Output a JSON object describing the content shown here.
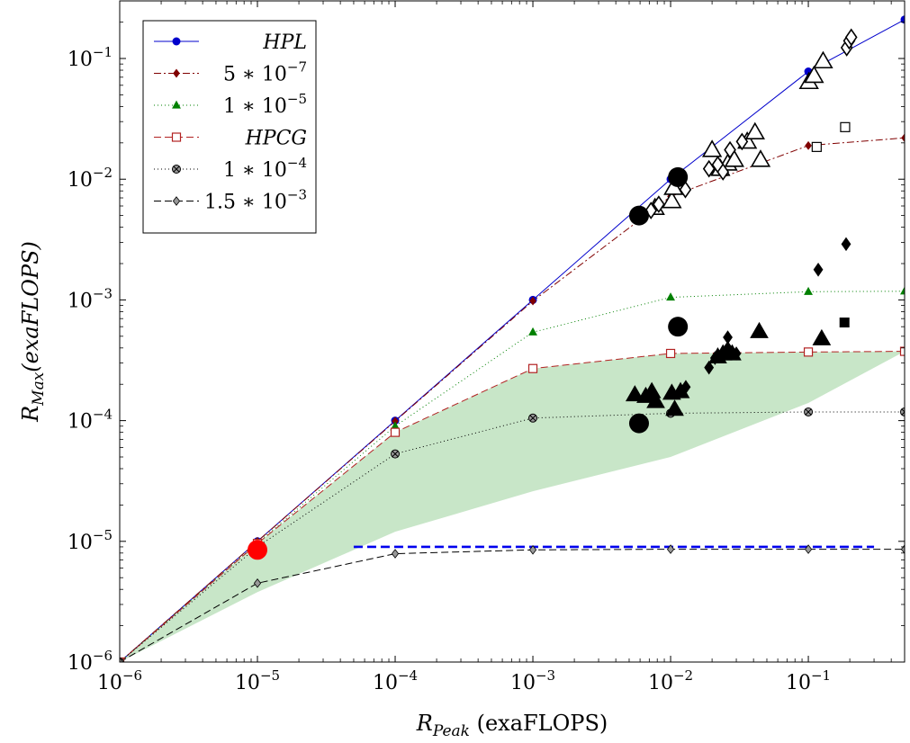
{
  "chart_data": {
    "type": "scatter",
    "xscale": "log",
    "yscale": "log",
    "xlim": [
      1e-06,
      0.5
    ],
    "ylim": [
      1e-06,
      0.3
    ],
    "xlabel": {
      "main": "R",
      "sub": "Peak",
      "rest": " (exaFLOPS)"
    },
    "ylabel": {
      "main": "R",
      "sub": "Max",
      "rest": "(exaFLOPS)"
    },
    "x_ticks": [
      {
        "value": 1e-06,
        "base": "10",
        "exp": "−6"
      },
      {
        "value": 1e-05,
        "base": "10",
        "exp": "−5"
      },
      {
        "value": 0.0001,
        "base": "10",
        "exp": "−4"
      },
      {
        "value": 0.001,
        "base": "10",
        "exp": "−3"
      },
      {
        "value": 0.01,
        "base": "10",
        "exp": "−2"
      },
      {
        "value": 0.1,
        "base": "10",
        "exp": "−1"
      }
    ],
    "y_ticks": [
      {
        "value": 1e-06,
        "base": "10",
        "exp": "−6"
      },
      {
        "value": 1e-05,
        "base": "10",
        "exp": "−5"
      },
      {
        "value": 0.0001,
        "base": "10",
        "exp": "−4"
      },
      {
        "value": 0.001,
        "base": "10",
        "exp": "−3"
      },
      {
        "value": 0.01,
        "base": "10",
        "exp": "−2"
      },
      {
        "value": 0.1,
        "base": "10",
        "exp": "−1"
      }
    ],
    "legend_position": "top-left",
    "series": [
      {
        "name": "HPL",
        "color": "#0000cc",
        "marker": "circle",
        "dash": "",
        "italic": true,
        "x": [
          1e-06,
          1e-05,
          0.0001,
          0.001,
          0.01,
          0.1,
          0.5
        ],
        "y": [
          1e-06,
          1e-05,
          0.0001,
          0.001,
          0.01,
          0.078,
          0.21
        ]
      },
      {
        "name": "5 ∗ 10",
        "name_exp": "−7",
        "color": "#800000",
        "marker": "diamond",
        "dash": "8,3,2,3",
        "italic": false,
        "x": [
          1e-06,
          1e-05,
          0.0001,
          0.001,
          0.01,
          0.1,
          0.5
        ],
        "y": [
          1e-06,
          1e-05,
          9.9e-05,
          0.00098,
          0.0072,
          0.019,
          0.022
        ]
      },
      {
        "name": "1 ∗ 10",
        "name_exp": "−5",
        "color": "#008000",
        "marker": "triangle",
        "dash": "1,3",
        "italic": false,
        "x": [
          1e-06,
          1e-05,
          0.0001,
          0.001,
          0.01,
          0.1,
          0.5
        ],
        "y": [
          1e-06,
          9.7e-06,
          9e-05,
          0.00054,
          0.00105,
          0.00117,
          0.00118
        ]
      },
      {
        "name": "HPCG",
        "color": "#b22222",
        "marker": "square-open",
        "dash": "8,4",
        "italic": true,
        "x": [
          1e-06,
          1e-05,
          0.0001,
          0.001,
          0.01,
          0.1,
          0.5
        ],
        "y": [
          1e-06,
          9.6e-06,
          8e-05,
          0.00027,
          0.00036,
          0.00037,
          0.000375
        ]
      },
      {
        "name": "1 ∗ 10",
        "name_exp": "−4",
        "color": "#000000",
        "marker": "circle-x",
        "dash": "1,3",
        "italic": false,
        "x": [
          1e-06,
          1e-05,
          0.0001,
          0.001,
          0.01,
          0.1,
          0.5
        ],
        "y": [
          1e-06,
          9e-06,
          5.3e-05,
          0.000105,
          0.000115,
          0.000118,
          0.000118
        ]
      },
      {
        "name": "1.5 ∗ 10",
        "name_exp": "−3",
        "color": "#000000",
        "marker": "diamond-gray",
        "dash": "8,4",
        "italic": false,
        "x": [
          1e-06,
          1e-05,
          0.0001,
          0.001,
          0.01,
          0.1,
          0.5
        ],
        "y": [
          1e-06,
          4.5e-06,
          7.9e-06,
          8.5e-06,
          8.6e-06,
          8.6e-06,
          8.6e-06
        ]
      }
    ],
    "shaded_region": {
      "color": "#c8e6c8",
      "upper": [
        [
          1e-06,
          1e-06
        ],
        [
          1e-05,
          9.6e-06
        ],
        [
          0.0001,
          8e-05
        ],
        [
          0.001,
          0.00027
        ],
        [
          0.01,
          0.00036
        ],
        [
          0.1,
          0.00037
        ],
        [
          0.5,
          0.000375
        ]
      ],
      "lower": [
        [
          1e-06,
          1e-06
        ],
        [
          1e-05,
          3.8e-06
        ],
        [
          0.0001,
          1.2e-05
        ],
        [
          0.001,
          2.6e-05
        ],
        [
          0.01,
          5e-05
        ],
        [
          0.1,
          0.00014
        ],
        [
          0.5,
          0.000375
        ]
      ]
    },
    "reference_line": {
      "color": "#0000ee",
      "x": [
        5e-05,
        0.3
      ],
      "y": [
        9e-06,
        9e-06
      ],
      "dash": "10,5"
    },
    "scatter_points": [
      {
        "shape": "triangle-open",
        "x": 0.0077,
        "y": 0.0058
      },
      {
        "shape": "triangle-open",
        "x": 0.0102,
        "y": 0.0066
      },
      {
        "shape": "triangle-open",
        "x": 0.0105,
        "y": 0.0085
      },
      {
        "shape": "triangle-open",
        "x": 0.02,
        "y": 0.0175
      },
      {
        "shape": "triangle-open",
        "x": 0.023,
        "y": 0.0122
      },
      {
        "shape": "triangle-open",
        "x": 0.026,
        "y": 0.0135
      },
      {
        "shape": "triangle-open",
        "x": 0.029,
        "y": 0.0145
      },
      {
        "shape": "triangle-open",
        "x": 0.036,
        "y": 0.0205
      },
      {
        "shape": "triangle-open",
        "x": 0.041,
        "y": 0.0245
      },
      {
        "shape": "triangle-open",
        "x": 0.045,
        "y": 0.0145
      },
      {
        "shape": "triangle-open",
        "x": 0.101,
        "y": 0.064
      },
      {
        "shape": "triangle-open",
        "x": 0.11,
        "y": 0.072
      },
      {
        "shape": "triangle-open",
        "x": 0.128,
        "y": 0.095
      },
      {
        "shape": "diamond-open",
        "x": 0.0072,
        "y": 0.0055
      },
      {
        "shape": "diamond-open",
        "x": 0.0082,
        "y": 0.0062
      },
      {
        "shape": "diamond-open",
        "x": 0.0128,
        "y": 0.0082
      },
      {
        "shape": "diamond-open",
        "x": 0.019,
        "y": 0.0122
      },
      {
        "shape": "diamond-open",
        "x": 0.022,
        "y": 0.0132
      },
      {
        "shape": "diamond-open",
        "x": 0.024,
        "y": 0.0115
      },
      {
        "shape": "diamond-open",
        "x": 0.027,
        "y": 0.0175
      },
      {
        "shape": "diamond-open",
        "x": 0.033,
        "y": 0.0205
      },
      {
        "shape": "diamond-open",
        "x": 0.19,
        "y": 0.123
      },
      {
        "shape": "diamond-open",
        "x": 0.198,
        "y": 0.14
      },
      {
        "shape": "diamond-open",
        "x": 0.205,
        "y": 0.15
      },
      {
        "shape": "square-open",
        "x": 0.115,
        "y": 0.0185
      },
      {
        "shape": "square-open",
        "x": 0.185,
        "y": 0.027
      },
      {
        "shape": "circle-filled",
        "x": 0.0059,
        "y": 0.005
      },
      {
        "shape": "circle-filled",
        "x": 0.0113,
        "y": 0.0104
      },
      {
        "shape": "circle-filled",
        "x": 0.0113,
        "y": 0.0006
      },
      {
        "shape": "circle-filled",
        "x": 0.0059,
        "y": 9.5e-05
      },
      {
        "shape": "triangle-filled",
        "x": 0.0055,
        "y": 0.000165
      },
      {
        "shape": "triangle-filled",
        "x": 0.0066,
        "y": 0.00016
      },
      {
        "shape": "triangle-filled",
        "x": 0.0073,
        "y": 0.000175
      },
      {
        "shape": "triangle-filled",
        "x": 0.0078,
        "y": 0.000145
      },
      {
        "shape": "triangle-filled",
        "x": 0.0102,
        "y": 0.00017
      },
      {
        "shape": "triangle-filled",
        "x": 0.0107,
        "y": 0.000125
      },
      {
        "shape": "triangle-filled",
        "x": 0.0118,
        "y": 0.000175
      },
      {
        "shape": "triangle-filled",
        "x": 0.022,
        "y": 0.00034
      },
      {
        "shape": "triangle-filled",
        "x": 0.024,
        "y": 0.00036
      },
      {
        "shape": "triangle-filled",
        "x": 0.028,
        "y": 0.00036
      },
      {
        "shape": "triangle-filled",
        "x": 0.044,
        "y": 0.00055
      },
      {
        "shape": "triangle-filled",
        "x": 0.125,
        "y": 0.00048
      },
      {
        "shape": "diamond-filled",
        "x": 0.0129,
        "y": 0.00019
      },
      {
        "shape": "diamond-filled",
        "x": 0.019,
        "y": 0.000275
      },
      {
        "shape": "diamond-filled",
        "x": 0.021,
        "y": 0.00033
      },
      {
        "shape": "diamond-filled",
        "x": 0.026,
        "y": 0.0004
      },
      {
        "shape": "diamond-filled",
        "x": 0.026,
        "y": 0.00049
      },
      {
        "shape": "diamond-filled",
        "x": 0.03,
        "y": 0.00036
      },
      {
        "shape": "diamond-filled",
        "x": 0.118,
        "y": 0.00178
      },
      {
        "shape": "diamond-filled",
        "x": 0.188,
        "y": 0.0029
      },
      {
        "shape": "square-filled",
        "x": 0.183,
        "y": 0.00065
      },
      {
        "shape": "circle-red",
        "x": 1e-05,
        "y": 8.5e-06
      }
    ]
  }
}
